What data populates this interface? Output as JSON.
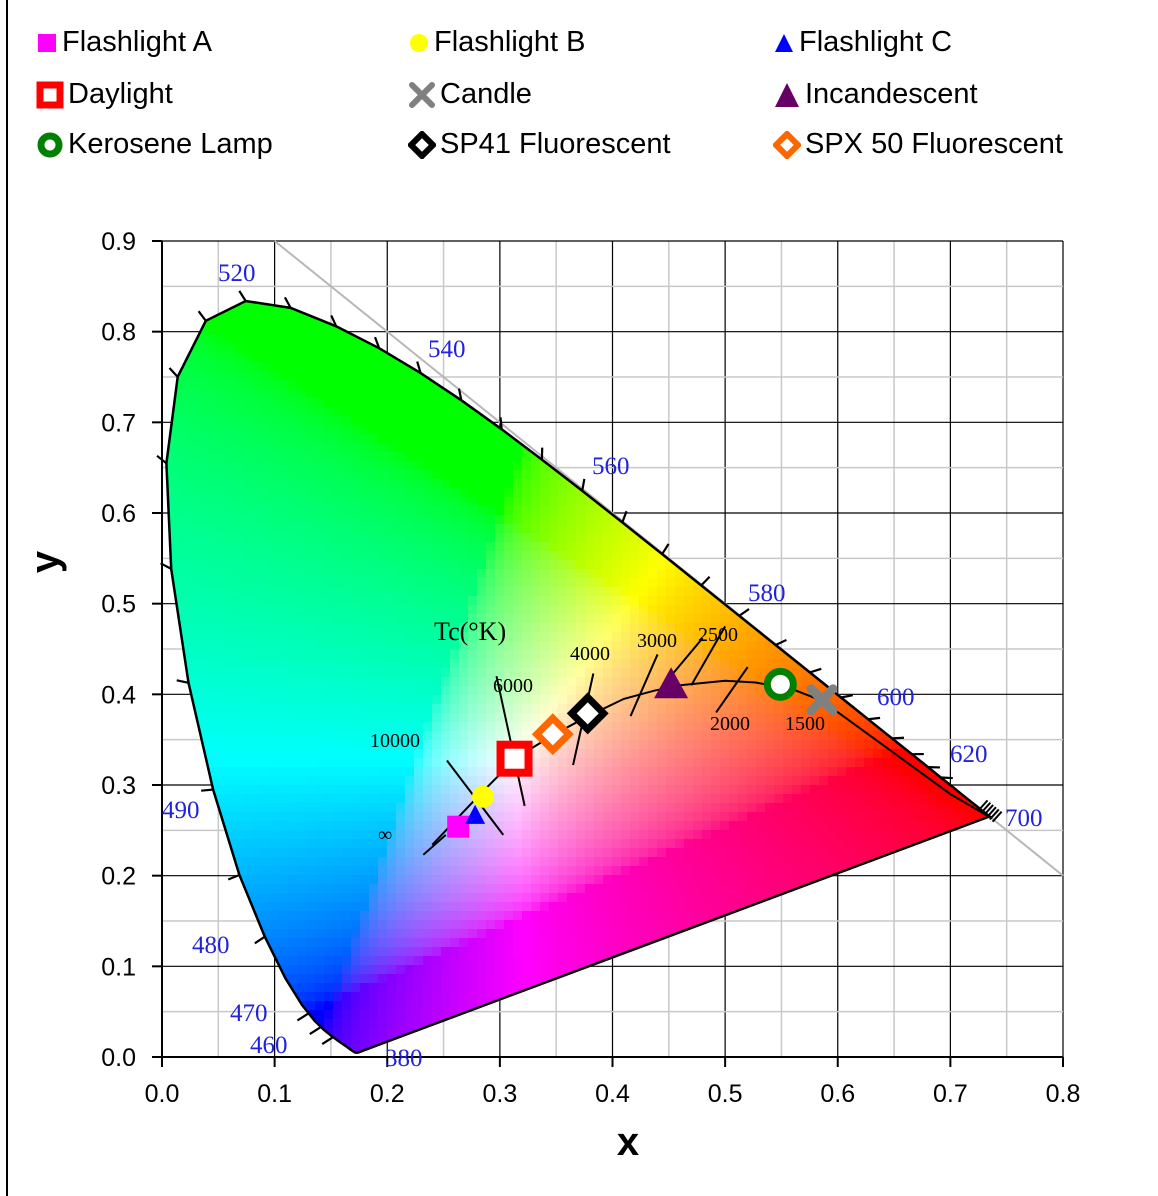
{
  "legend": [
    {
      "label": "Flashlight A",
      "marker": "square",
      "color": "#ff00ff"
    },
    {
      "label": "Flashlight B",
      "marker": "circle",
      "color": "#ffff00"
    },
    {
      "label": "Flashlight C",
      "marker": "triangle",
      "color": "#0000ff"
    },
    {
      "label": "Daylight",
      "marker": "square-hollow",
      "color": "#ff0000"
    },
    {
      "label": "Candle",
      "marker": "x",
      "color": "#808080"
    },
    {
      "label": "Incandescent",
      "marker": "triangle",
      "color": "#660066"
    },
    {
      "label": "Kerosene Lamp",
      "marker": "circle-hollow",
      "color": "#008000"
    },
    {
      "label": "SP41 Fluorescent",
      "marker": "diamond-hollow",
      "color": "#000000"
    },
    {
      "label": "SPX 50 Fluorescent",
      "marker": "diamond-hollow",
      "color": "#ff6600"
    }
  ],
  "chart_data": {
    "type": "scatter",
    "xlabel": "x",
    "ylabel": "y",
    "xlim": [
      0,
      0.8
    ],
    "ylim": [
      0,
      0.9
    ],
    "xticks": [
      "0.0",
      "0.1",
      "0.2",
      "0.3",
      "0.4",
      "0.5",
      "0.6",
      "0.7",
      "0.8"
    ],
    "yticks": [
      "0.0",
      "0.1",
      "0.2",
      "0.3",
      "0.4",
      "0.5",
      "0.6",
      "0.7",
      "0.8",
      "0.9"
    ],
    "grid": true,
    "legend_position": "top",
    "series": [
      {
        "name": "Flashlight A",
        "x": [
          0.263
        ],
        "y": [
          0.254
        ]
      },
      {
        "name": "Flashlight B",
        "x": [
          0.285
        ],
        "y": [
          0.287
        ]
      },
      {
        "name": "Flashlight C",
        "x": [
          0.278
        ],
        "y": [
          0.266
        ]
      },
      {
        "name": "Daylight",
        "x": [
          0.313
        ],
        "y": [
          0.329
        ]
      },
      {
        "name": "Candle",
        "x": [
          0.586
        ],
        "y": [
          0.394
        ]
      },
      {
        "name": "Incandescent",
        "x": [
          0.452
        ],
        "y": [
          0.41
        ]
      },
      {
        "name": "Kerosene Lamp",
        "x": [
          0.549
        ],
        "y": [
          0.411
        ]
      },
      {
        "name": "SP41 Fluorescent",
        "x": [
          0.378
        ],
        "y": [
          0.379
        ]
      },
      {
        "name": "SPX 50 Fluorescent",
        "x": [
          0.347
        ],
        "y": [
          0.356
        ]
      }
    ],
    "wavelength_labels": [
      "460",
      "470",
      "480",
      "490",
      "520",
      "540",
      "560",
      "580",
      "600",
      "620",
      "700",
      "380"
    ],
    "temperature_title": "Tc(°K)",
    "temperature_labels": [
      "10000",
      "6000",
      "4000",
      "3000",
      "2500",
      "2000",
      "1500",
      "∞"
    ]
  }
}
